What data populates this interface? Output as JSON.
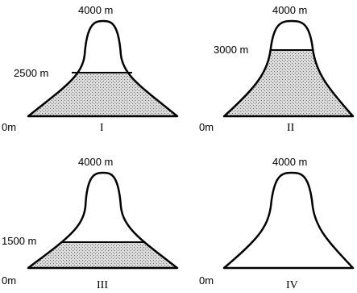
{
  "panels": [
    {
      "roman": "I",
      "peak_label": "4000 m",
      "base_label": "0m",
      "fill_label": "2500 m"
    },
    {
      "roman": "II",
      "peak_label": "4000 m",
      "base_label": "0m",
      "fill_label": "3000 m"
    },
    {
      "roman": "III",
      "peak_label": "4000 m",
      "base_label": "0m",
      "fill_label": "1500 m"
    },
    {
      "roman": "IV",
      "peak_label": "4000 m",
      "base_label": "0m",
      "fill_label": ""
    }
  ],
  "colors": {
    "outline": "#000000",
    "stipple_bg": "#dcdcdc",
    "stipple_dot": "#666666"
  }
}
